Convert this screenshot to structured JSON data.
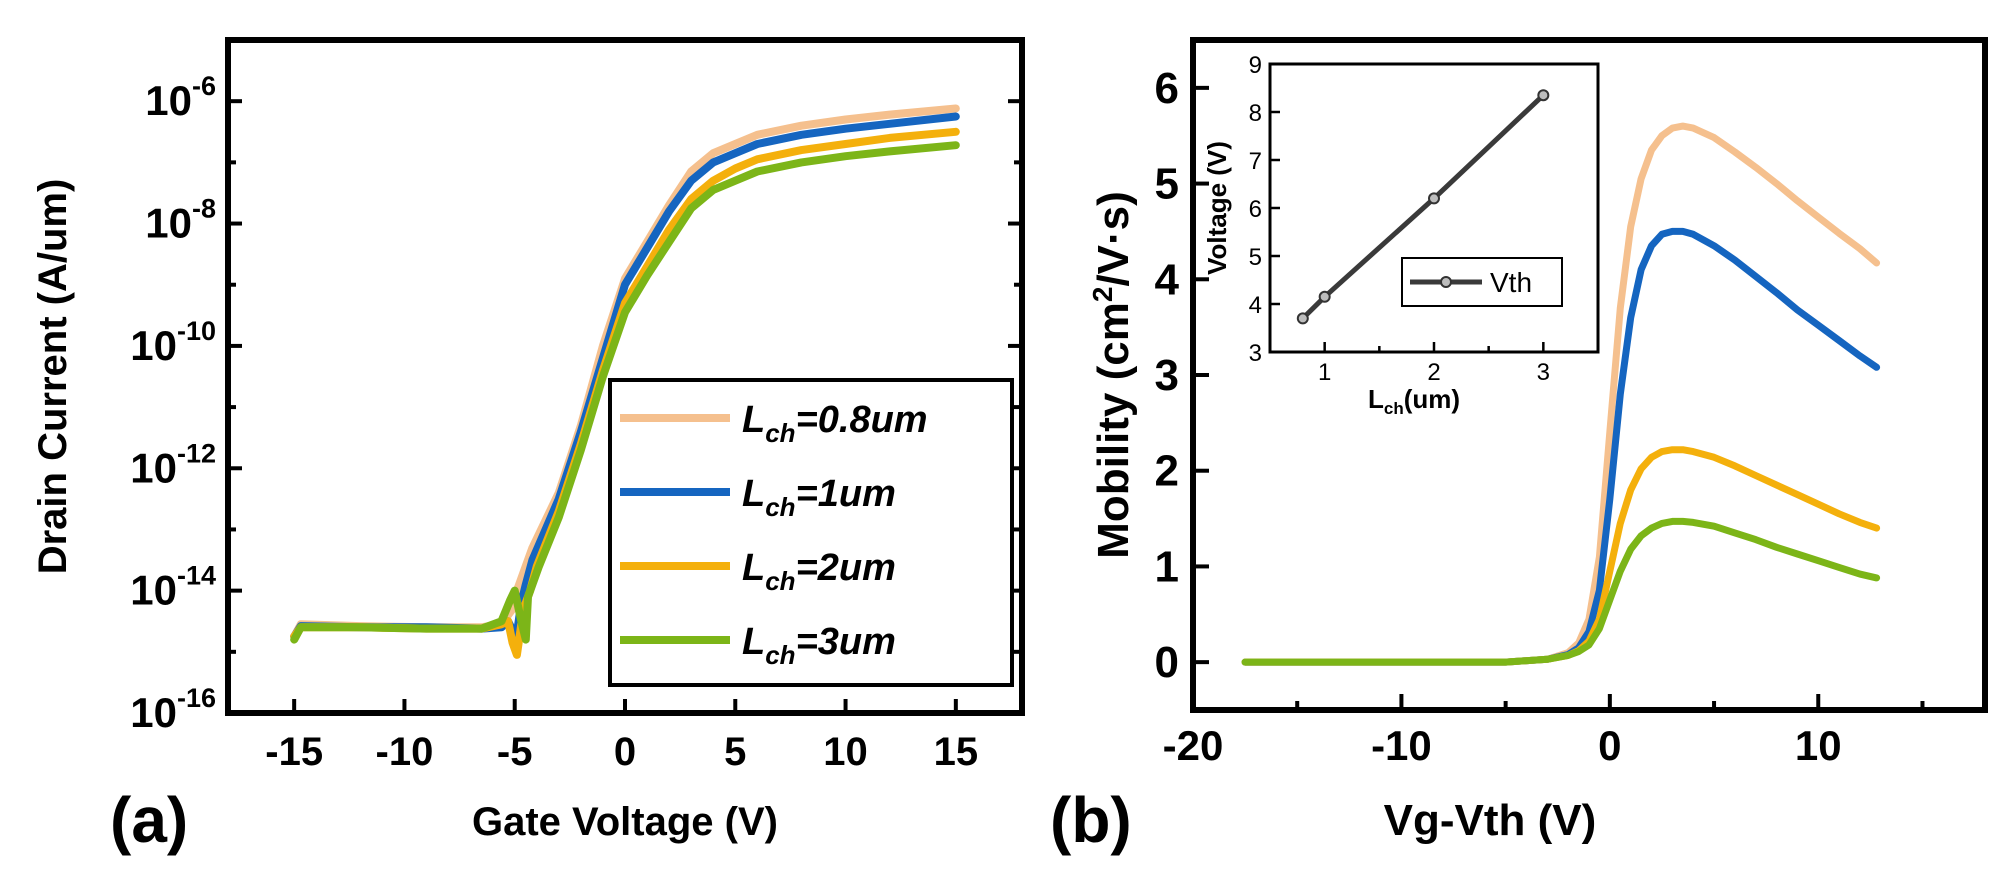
{
  "chart_data": [
    {
      "panel_label": "(a)",
      "type": "line",
      "yscale": "log",
      "xlabel": "Gate Voltage (V)",
      "ylabel": "Drain Current (A/um)",
      "xlim": [
        -18,
        18
      ],
      "ylim_exp": [
        -16,
        -5
      ],
      "xticks": [
        -15,
        -10,
        -5,
        0,
        5,
        10,
        15
      ],
      "ytick_exps": [
        -16,
        -14,
        -12,
        -10,
        -8,
        -6
      ],
      "ytick_base": "10",
      "legend": {
        "position": "right",
        "entries": [
          {
            "main": "L",
            "sub": "ch",
            "rest": "=0.8um"
          },
          {
            "main": "L",
            "sub": "ch",
            "rest": "=1um"
          },
          {
            "main": "L",
            "sub": "ch",
            "rest": "=2um"
          },
          {
            "main": "L",
            "sub": "ch",
            "rest": "=3um"
          }
        ]
      },
      "series": [
        {
          "name": "Lch=0.8um",
          "color": "#f5c08e",
          "x": [
            -15,
            -14.7,
            -12,
            -9,
            -6.5,
            -5.7,
            -5.3,
            -5.1,
            -4.9,
            -4.6,
            -4.2,
            -3,
            -2,
            -1,
            0,
            1,
            2,
            3,
            4,
            5,
            6,
            8,
            10,
            12,
            15
          ],
          "y": [
            -14.75,
            -14.55,
            -14.58,
            -14.6,
            -14.6,
            -14.55,
            -14.4,
            -14.3,
            -14.0,
            -13.7,
            -13.3,
            -12.4,
            -11.3,
            -10.0,
            -8.9,
            -8.3,
            -7.7,
            -7.15,
            -6.85,
            -6.7,
            -6.55,
            -6.4,
            -6.3,
            -6.22,
            -6.12
          ]
        },
        {
          "name": "Lch=1um",
          "color": "#1565c0",
          "x": [
            -15,
            -14.7,
            -12,
            -9,
            -6.5,
            -5.6,
            -5.3,
            -5.1,
            -4.9,
            -4.7,
            -4.5,
            -4.2,
            -3,
            -2,
            -1,
            0,
            1,
            2,
            3,
            4,
            5,
            6,
            8,
            10,
            12,
            15
          ],
          "y": [
            -14.75,
            -14.58,
            -14.6,
            -14.6,
            -14.62,
            -14.6,
            -14.5,
            -14.65,
            -14.7,
            -14.2,
            -13.9,
            -13.5,
            -12.5,
            -11.4,
            -10.2,
            -9.0,
            -8.4,
            -7.8,
            -7.3,
            -7.0,
            -6.85,
            -6.7,
            -6.55,
            -6.45,
            -6.37,
            -6.25
          ]
        },
        {
          "name": "Lch=2um",
          "color": "#f4b00c",
          "x": [
            -15,
            -14.7,
            -12,
            -9,
            -6.5,
            -5.6,
            -5.3,
            -5.1,
            -4.9,
            -4.6,
            -4.3,
            -4.0,
            -3,
            -2,
            -1,
            0,
            1,
            2,
            3,
            4,
            5,
            6,
            8,
            10,
            12,
            15
          ],
          "y": [
            -14.75,
            -14.6,
            -14.6,
            -14.62,
            -14.62,
            -14.55,
            -14.5,
            -14.85,
            -15.05,
            -14.3,
            -14.0,
            -13.6,
            -12.7,
            -11.6,
            -10.4,
            -9.3,
            -8.7,
            -8.1,
            -7.6,
            -7.3,
            -7.1,
            -6.95,
            -6.8,
            -6.7,
            -6.6,
            -6.5
          ]
        },
        {
          "name": "Lch=3um",
          "color": "#7cb518",
          "x": [
            -15,
            -14.7,
            -12,
            -9,
            -6.5,
            -5.6,
            -5.2,
            -5.0,
            -4.7,
            -4.5,
            -4.4,
            -4.2,
            -3.9,
            -3,
            -2,
            -1,
            0,
            1,
            2,
            3,
            4,
            5,
            6,
            8,
            10,
            12,
            15
          ],
          "y": [
            -14.8,
            -14.6,
            -14.6,
            -14.62,
            -14.62,
            -14.5,
            -14.15,
            -14.0,
            -14.5,
            -14.8,
            -14.1,
            -13.9,
            -13.6,
            -12.8,
            -11.7,
            -10.5,
            -9.45,
            -8.85,
            -8.3,
            -7.75,
            -7.45,
            -7.3,
            -7.15,
            -7.0,
            -6.9,
            -6.82,
            -6.72
          ]
        }
      ]
    },
    {
      "panel_label": "(b)",
      "type": "line",
      "xlabel": "Vg-Vth (V)",
      "ylabel_main": "Mobility (cm",
      "ylabel_sup": "2",
      "ylabel_rest": "/V·s)",
      "xlim": [
        -20,
        18
      ],
      "ylim": [
        -0.5,
        6.5
      ],
      "xticks": [
        -20,
        -10,
        0,
        10
      ],
      "xtick_labels": [
        "-20",
        "-10",
        "0",
        "10"
      ],
      "yticks": [
        0,
        1,
        2,
        3,
        4,
        5,
        6
      ],
      "series": [
        {
          "name": "Lch=0.8um",
          "color": "#f5c08e",
          "x": [
            -17.5,
            -10,
            -5,
            -3,
            -2,
            -1.5,
            -1,
            -0.5,
            0,
            0.5,
            1,
            1.5,
            2,
            2.5,
            3,
            3.5,
            4,
            5,
            6,
            7,
            8,
            9,
            10,
            11,
            12,
            12.8
          ],
          "y": [
            0,
            0,
            0,
            0.03,
            0.1,
            0.2,
            0.45,
            1.1,
            2.4,
            3.7,
            4.55,
            5.05,
            5.35,
            5.5,
            5.58,
            5.6,
            5.58,
            5.48,
            5.33,
            5.17,
            5.0,
            4.82,
            4.65,
            4.48,
            4.32,
            4.17
          ]
        },
        {
          "name": "Lch=1um",
          "color": "#1565c0",
          "x": [
            -17.5,
            -10,
            -5,
            -3,
            -2,
            -1.5,
            -1,
            -0.5,
            0,
            0.5,
            1,
            1.5,
            2,
            2.5,
            3,
            3.5,
            4,
            5,
            6,
            7,
            8,
            9,
            10,
            11,
            12,
            12.8
          ],
          "y": [
            0,
            0,
            0,
            0.03,
            0.08,
            0.15,
            0.32,
            0.75,
            1.7,
            2.8,
            3.6,
            4.1,
            4.35,
            4.47,
            4.5,
            4.5,
            4.47,
            4.35,
            4.2,
            4.03,
            3.86,
            3.68,
            3.52,
            3.36,
            3.2,
            3.08
          ]
        },
        {
          "name": "Lch=2um",
          "color": "#f4b00c",
          "x": [
            -17.5,
            -10,
            -5,
            -3,
            -2,
            -1.5,
            -1,
            -0.5,
            0,
            0.5,
            1,
            1.5,
            2,
            2.5,
            3,
            3.5,
            4,
            5,
            6,
            7,
            8,
            9,
            10,
            11,
            12,
            12.8
          ],
          "y": [
            0,
            0,
            0,
            0.03,
            0.07,
            0.12,
            0.22,
            0.45,
            0.95,
            1.45,
            1.8,
            2.02,
            2.14,
            2.2,
            2.22,
            2.22,
            2.2,
            2.14,
            2.05,
            1.95,
            1.85,
            1.75,
            1.65,
            1.55,
            1.46,
            1.4
          ]
        },
        {
          "name": "Lch=3um",
          "color": "#7cb518",
          "x": [
            -17.5,
            -10,
            -5,
            -3,
            -2,
            -1.5,
            -1,
            -0.5,
            0,
            0.5,
            1,
            1.5,
            2,
            2.5,
            3,
            3.5,
            4,
            5,
            6,
            7,
            8,
            9,
            10,
            11,
            12,
            12.8
          ],
          "y": [
            0,
            0,
            0,
            0.03,
            0.07,
            0.11,
            0.18,
            0.35,
            0.65,
            0.95,
            1.18,
            1.32,
            1.4,
            1.45,
            1.47,
            1.47,
            1.46,
            1.42,
            1.35,
            1.28,
            1.2,
            1.13,
            1.06,
            0.99,
            0.92,
            0.88
          ]
        }
      ]
    },
    {
      "panel_label": "inset",
      "type": "line",
      "xlabel_main": "L",
      "xlabel_sub": "ch",
      "xlabel_rest": "(um)",
      "ylabel": "Voltage (V)",
      "xlim": [
        0.5,
        3.5
      ],
      "ylim": [
        3,
        9
      ],
      "xticks": [
        1,
        2,
        3
      ],
      "yticks": [
        3,
        4,
        5,
        6,
        7,
        8,
        9
      ],
      "legend": {
        "position": "center-right",
        "entries": [
          "Vth"
        ]
      },
      "series": [
        {
          "name": "Vth",
          "color": "#3a3a3a",
          "x": [
            0.8,
            1,
            2,
            3
          ],
          "y": [
            3.7,
            4.15,
            6.2,
            8.35
          ]
        }
      ]
    }
  ]
}
